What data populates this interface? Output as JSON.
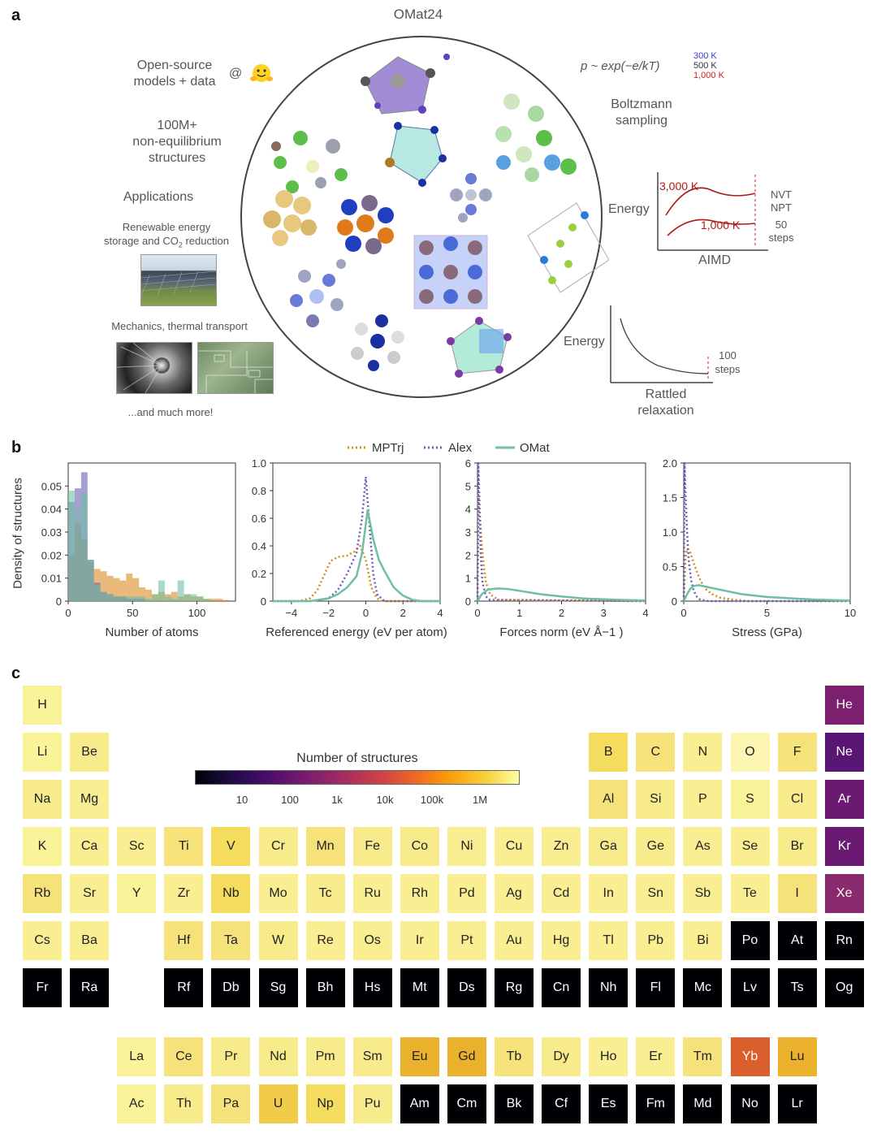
{
  "panel_a": {
    "letter": "a",
    "title": "OMat24",
    "left": {
      "open_source_line1": "Open-source",
      "open_source_line2": "models + data",
      "at": "@",
      "structures_line1": "100M+",
      "structures_line2": "non-equilibrium",
      "structures_line3": "structures",
      "applications": "Applications",
      "renewable_line1": "Renewable energy",
      "renewable_line2_a": "storage and CO",
      "renewable_line2_sub": "2",
      "renewable_line2_b": " reduction",
      "mechanics": "Mechanics, thermal transport",
      "more": "...and much more!"
    },
    "right": {
      "boltzmann_formula": "p ~ exp(−e/kT)",
      "temps": [
        "300 K",
        "500 K",
        "1,000 K"
      ],
      "temp_colors": [
        "#3a3ad0",
        "#333333",
        "#d02020"
      ],
      "boltzmann_line1": "Boltzmann",
      "boltzmann_line2": "sampling",
      "energy1": "Energy",
      "t_high": "3,000 K",
      "t_low": "1,000 K",
      "nvt": "NVT",
      "npt": "NPT",
      "steps50_a": "50",
      "steps50_b": "steps",
      "aimd": "AIMD",
      "energy2": "Energy",
      "steps100_a": "100",
      "steps100_b": "steps",
      "rattled_line1": "Rattled",
      "rattled_line2": "relaxation"
    }
  },
  "panel_b": {
    "letter": "b",
    "legend": [
      {
        "name": "MPTrj",
        "color": "#d98a1e",
        "style": "dotted"
      },
      {
        "name": "Alex",
        "color": "#6b5fb5",
        "style": "dotted"
      },
      {
        "name": "OMat",
        "color": "#6fbfa3",
        "style": "solid"
      }
    ],
    "ylabel": "Density of structures",
    "chart_data": [
      {
        "type": "bar",
        "xlabel": "Number of atoms",
        "xlim": [
          0,
          130
        ],
        "ylim": [
          0,
          0.06
        ],
        "xticks": [
          "0",
          "50",
          "100"
        ],
        "yticks": [
          "0",
          "0.01",
          "0.02",
          "0.03",
          "0.04",
          "0.05"
        ],
        "bin_width": 5,
        "bin_starts": [
          0,
          5,
          10,
          15,
          20,
          25,
          30,
          35,
          40,
          45,
          50,
          55,
          60,
          65,
          70,
          75,
          80,
          85,
          90,
          95,
          100,
          105,
          110,
          115,
          120
        ],
        "series": [
          {
            "name": "MPTrj",
            "values": [
              0.02,
              0.034,
              0.027,
              0.017,
              0.014,
              0.013,
              0.011,
              0.01,
              0.009,
              0.012,
              0.01,
              0.006,
              0.005,
              0.003,
              0.004,
              0.003,
              0.004,
              0.002,
              0.003,
              0.002,
              0.002,
              0.001,
              0.001,
              0.001,
              0.0005
            ]
          },
          {
            "name": "Alex",
            "values": [
              0.043,
              0.049,
              0.056,
              0.018,
              0.008,
              0.004,
              0.003,
              0.002,
              0.002,
              0.001,
              0.001,
              0.001,
              0,
              0,
              0,
              0,
              0,
              0,
              0,
              0,
              0,
              0,
              0,
              0,
              0
            ]
          },
          {
            "name": "OMat",
            "values": [
              0.048,
              0.04,
              0.047,
              0.018,
              0.007,
              0.004,
              0.003,
              0.002,
              0.002,
              0.002,
              0.002,
              0.002,
              0.001,
              0.003,
              0.009,
              0.002,
              0.001,
              0.009,
              0.003,
              0.003,
              0.002,
              0.001,
              0,
              0,
              0
            ]
          }
        ]
      },
      {
        "type": "line",
        "xlabel": "Referenced energy (eV per atom)",
        "xlim": [
          -5,
          4
        ],
        "ylim": [
          0,
          1.0
        ],
        "xticks": [
          "−4",
          "−2",
          "0",
          "2",
          "4"
        ],
        "yticks": [
          "0",
          "0.2",
          "0.4",
          "0.6",
          "0.8",
          "1.0"
        ],
        "series": [
          {
            "name": "MPTrj",
            "x": [
              -5,
              -3.6,
              -3,
              -2.6,
              -2.2,
              -1.9,
              -1.5,
              -1,
              -0.6,
              -0.3,
              0,
              0.3,
              0.6,
              0.9,
              1.2,
              4
            ],
            "y": [
              0,
              0,
              0.02,
              0.08,
              0.2,
              0.29,
              0.32,
              0.33,
              0.36,
              0.4,
              0.3,
              0.1,
              0.02,
              0,
              0,
              0
            ]
          },
          {
            "name": "Alex",
            "x": [
              -5,
              -3,
              -2,
              -1.5,
              -1,
              -0.5,
              -0.2,
              0,
              0.2,
              0.4,
              0.6,
              1,
              4
            ],
            "y": [
              0,
              0,
              0.02,
              0.08,
              0.2,
              0.35,
              0.6,
              0.9,
              0.55,
              0.2,
              0.05,
              0,
              0
            ]
          },
          {
            "name": "OMat",
            "x": [
              -5,
              -3,
              -2,
              -1.5,
              -1,
              -0.5,
              -0.2,
              0.1,
              0.4,
              0.7,
              1,
              1.5,
              2,
              2.5,
              3,
              4
            ],
            "y": [
              0,
              0,
              0.02,
              0.05,
              0.1,
              0.18,
              0.35,
              0.66,
              0.45,
              0.3,
              0.22,
              0.1,
              0.04,
              0.01,
              0,
              0
            ]
          }
        ]
      },
      {
        "type": "line",
        "xlabel": "Forces norm (eV Å−1 )",
        "xlim": [
          0,
          4
        ],
        "ylim": [
          0,
          6
        ],
        "xticks": [
          "0",
          "1",
          "2",
          "3",
          "4"
        ],
        "yticks": [
          "0",
          "1",
          "2",
          "3",
          "4",
          "5",
          "6"
        ],
        "series": [
          {
            "name": "MPTrj",
            "x": [
              0,
              0.03,
              0.06,
              0.1,
              0.15,
              0.2,
              0.3,
              0.5,
              4
            ],
            "y": [
              0,
              4.5,
              3.6,
              2.5,
              1.5,
              0.8,
              0.3,
              0.05,
              0
            ]
          },
          {
            "name": "Alex",
            "x": [
              0,
              0.02,
              0.05,
              0.08,
              0.12,
              0.2,
              0.3,
              4
            ],
            "y": [
              0,
              6.0,
              4.0,
              2.0,
              0.8,
              0.2,
              0.05,
              0
            ]
          },
          {
            "name": "OMat",
            "x": [
              0,
              0.1,
              0.25,
              0.5,
              0.75,
              1,
              1.5,
              2,
              2.5,
              3,
              3.5,
              4
            ],
            "y": [
              0,
              0.3,
              0.5,
              0.55,
              0.52,
              0.45,
              0.3,
              0.2,
              0.12,
              0.08,
              0.05,
              0.03
            ]
          }
        ]
      },
      {
        "type": "line",
        "xlabel": "Stress (GPa)",
        "xlim": [
          0,
          10
        ],
        "ylim": [
          0,
          2.0
        ],
        "xticks": [
          "0",
          "5",
          "10"
        ],
        "yticks": [
          "0",
          "0.5",
          "1.0",
          "1.5",
          "2.0"
        ],
        "series": [
          {
            "name": "MPTrj",
            "x": [
              0,
              0.1,
              0.2,
              0.4,
              0.6,
              0.8,
              1,
              1.3,
              1.7,
              2.2,
              3,
              4,
              10
            ],
            "y": [
              0,
              0.6,
              0.76,
              0.7,
              0.55,
              0.42,
              0.3,
              0.18,
              0.1,
              0.05,
              0.02,
              0,
              0
            ]
          },
          {
            "name": "Alex",
            "x": [
              0,
              0.05,
              0.1,
              0.2,
              0.3,
              0.45,
              0.6,
              0.8,
              1,
              1.5,
              10
            ],
            "y": [
              0,
              2.0,
              1.6,
              1.0,
              0.6,
              0.3,
              0.15,
              0.06,
              0.02,
              0,
              0
            ]
          },
          {
            "name": "OMat",
            "x": [
              0,
              0.2,
              0.4,
              0.6,
              0.9,
              1.5,
              2.5,
              3.5,
              5,
              6.5,
              8,
              10
            ],
            "y": [
              0,
              0.1,
              0.18,
              0.22,
              0.23,
              0.2,
              0.15,
              0.1,
              0.06,
              0.04,
              0.02,
              0.01
            ]
          }
        ]
      }
    ]
  },
  "panel_c": {
    "letter": "c",
    "colorbar_title": "Number of structures",
    "colorbar_ticks": [
      "10",
      "100",
      "1k",
      "10k",
      "100k",
      "1M"
    ],
    "main_table": [
      {
        "s": "H",
        "c": "#fbf39a"
      },
      {
        "s": "He",
        "c": "#7b1f6e"
      },
      {
        "s": "Li",
        "c": "#fbf39a"
      },
      {
        "s": "Be",
        "c": "#f7eb8c"
      },
      {
        "s": "B",
        "c": "#f4dc5e"
      },
      {
        "s": "C",
        "c": "#f6e27a"
      },
      {
        "s": "N",
        "c": "#f9ee92"
      },
      {
        "s": "O",
        "c": "#fcf6b2"
      },
      {
        "s": "F",
        "c": "#f6e27a"
      },
      {
        "s": "Ne",
        "c": "#5a1675"
      },
      {
        "s": "Na",
        "c": "#f7eb8c"
      },
      {
        "s": "Mg",
        "c": "#f9ee92"
      },
      {
        "s": "Al",
        "c": "#f6e27a"
      },
      {
        "s": "Si",
        "c": "#f7eb8c"
      },
      {
        "s": "P",
        "c": "#f9ee92"
      },
      {
        "s": "S",
        "c": "#fbf39a"
      },
      {
        "s": "Cl",
        "c": "#f7eb8c"
      },
      {
        "s": "Ar",
        "c": "#6a1a72"
      },
      {
        "s": "K",
        "c": "#fbf39a"
      },
      {
        "s": "Ca",
        "c": "#f9ee92"
      },
      {
        "s": "Sc",
        "c": "#f9ee92"
      },
      {
        "s": "Ti",
        "c": "#f6e27a"
      },
      {
        "s": "V",
        "c": "#f4dc5e"
      },
      {
        "s": "Cr",
        "c": "#f7eb8c"
      },
      {
        "s": "Mn",
        "c": "#f6e27a"
      },
      {
        "s": "Fe",
        "c": "#f7eb8c"
      },
      {
        "s": "Co",
        "c": "#f7eb8c"
      },
      {
        "s": "Ni",
        "c": "#f9ee92"
      },
      {
        "s": "Cu",
        "c": "#f9ee92"
      },
      {
        "s": "Zn",
        "c": "#f9ee92"
      },
      {
        "s": "Ga",
        "c": "#f7eb8c"
      },
      {
        "s": "Ge",
        "c": "#f7eb8c"
      },
      {
        "s": "As",
        "c": "#f9ee92"
      },
      {
        "s": "Se",
        "c": "#f9ee92"
      },
      {
        "s": "Br",
        "c": "#f7eb8c"
      },
      {
        "s": "Kr",
        "c": "#6a1a72"
      },
      {
        "s": "Rb",
        "c": "#f6e27a"
      },
      {
        "s": "Sr",
        "c": "#f9ee92"
      },
      {
        "s": "Y",
        "c": "#fbf39a"
      },
      {
        "s": "Zr",
        "c": "#f9ee92"
      },
      {
        "s": "Nb",
        "c": "#f4dc5e"
      },
      {
        "s": "Mo",
        "c": "#f9ee92"
      },
      {
        "s": "Tc",
        "c": "#f7eb8c"
      },
      {
        "s": "Ru",
        "c": "#f9ee92"
      },
      {
        "s": "Rh",
        "c": "#f9ee92"
      },
      {
        "s": "Pd",
        "c": "#f9ee92"
      },
      {
        "s": "Ag",
        "c": "#f9ee92"
      },
      {
        "s": "Cd",
        "c": "#f9ee92"
      },
      {
        "s": "In",
        "c": "#f9ee92"
      },
      {
        "s": "Sn",
        "c": "#f9ee92"
      },
      {
        "s": "Sb",
        "c": "#f9ee92"
      },
      {
        "s": "Te",
        "c": "#f9ee92"
      },
      {
        "s": "I",
        "c": "#f6e27a"
      },
      {
        "s": "Xe",
        "c": "#8a2a6e"
      },
      {
        "s": "Cs",
        "c": "#f9ee92"
      },
      {
        "s": "Ba",
        "c": "#f9ee92"
      },
      {
        "s": "Hf",
        "c": "#f6e27a"
      },
      {
        "s": "Ta",
        "c": "#f6e27a"
      },
      {
        "s": "W",
        "c": "#f7eb8c"
      },
      {
        "s": "Re",
        "c": "#f9ee92"
      },
      {
        "s": "Os",
        "c": "#f9ee92"
      },
      {
        "s": "Ir",
        "c": "#f9ee92"
      },
      {
        "s": "Pt",
        "c": "#f9ee92"
      },
      {
        "s": "Au",
        "c": "#f9ee92"
      },
      {
        "s": "Hg",
        "c": "#f9ee92"
      },
      {
        "s": "Tl",
        "c": "#f9ee92"
      },
      {
        "s": "Pb",
        "c": "#f9ee92"
      },
      {
        "s": "Bi",
        "c": "#f9ee92"
      },
      {
        "s": "Po",
        "c": "#000004"
      },
      {
        "s": "At",
        "c": "#000004"
      },
      {
        "s": "Rn",
        "c": "#000004"
      },
      {
        "s": "Fr",
        "c": "#000004"
      },
      {
        "s": "Ra",
        "c": "#000004"
      },
      {
        "s": "Rf",
        "c": "#000004"
      },
      {
        "s": "Db",
        "c": "#000004"
      },
      {
        "s": "Sg",
        "c": "#000004"
      },
      {
        "s": "Bh",
        "c": "#000004"
      },
      {
        "s": "Hs",
        "c": "#000004"
      },
      {
        "s": "Mt",
        "c": "#000004"
      },
      {
        "s": "Ds",
        "c": "#000004"
      },
      {
        "s": "Rg",
        "c": "#000004"
      },
      {
        "s": "Cn",
        "c": "#000004"
      },
      {
        "s": "Nh",
        "c": "#000004"
      },
      {
        "s": "Fl",
        "c": "#000004"
      },
      {
        "s": "Mc",
        "c": "#000004"
      },
      {
        "s": "Lv",
        "c": "#000004"
      },
      {
        "s": "Ts",
        "c": "#000004"
      },
      {
        "s": "Og",
        "c": "#000004"
      }
    ],
    "lanthanides": [
      {
        "s": "La",
        "c": "#fbf39a"
      },
      {
        "s": "Ce",
        "c": "#f6e27a"
      },
      {
        "s": "Pr",
        "c": "#f7eb8c"
      },
      {
        "s": "Nd",
        "c": "#f7eb8c"
      },
      {
        "s": "Pm",
        "c": "#f7eb8c"
      },
      {
        "s": "Sm",
        "c": "#f7eb8c"
      },
      {
        "s": "Eu",
        "c": "#eab22c"
      },
      {
        "s": "Gd",
        "c": "#eab22c"
      },
      {
        "s": "Tb",
        "c": "#f6e27a"
      },
      {
        "s": "Dy",
        "c": "#f7eb8c"
      },
      {
        "s": "Ho",
        "c": "#f9ee92"
      },
      {
        "s": "Er",
        "c": "#f9ee92"
      },
      {
        "s": "Tm",
        "c": "#f6e27a"
      },
      {
        "s": "Yb",
        "c": "#db5f2d"
      },
      {
        "s": "Lu",
        "c": "#eab22c"
      }
    ],
    "actinides": [
      {
        "s": "Ac",
        "c": "#fbf39a"
      },
      {
        "s": "Th",
        "c": "#f7eb8c"
      },
      {
        "s": "Pa",
        "c": "#f6e27a"
      },
      {
        "s": "U",
        "c": "#f0cc48"
      },
      {
        "s": "Np",
        "c": "#f4dc5e"
      },
      {
        "s": "Pu",
        "c": "#f7eb8c"
      },
      {
        "s": "Am",
        "c": "#000004"
      },
      {
        "s": "Cm",
        "c": "#000004"
      },
      {
        "s": "Bk",
        "c": "#000004"
      },
      {
        "s": "Cf",
        "c": "#000004"
      },
      {
        "s": "Es",
        "c": "#000004"
      },
      {
        "s": "Fm",
        "c": "#000004"
      },
      {
        "s": "Md",
        "c": "#000004"
      },
      {
        "s": "No",
        "c": "#000004"
      },
      {
        "s": "Lr",
        "c": "#000004"
      }
    ]
  }
}
